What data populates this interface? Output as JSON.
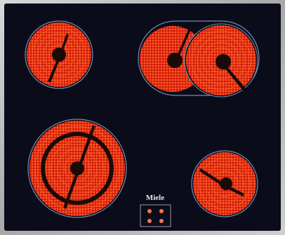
{
  "brand": "Miele"
}
